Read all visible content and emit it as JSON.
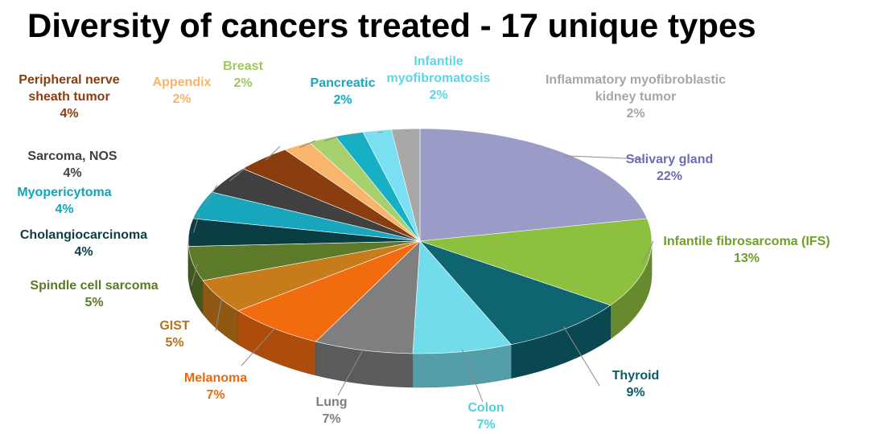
{
  "chart_data": {
    "type": "pie",
    "title": "Diversity of cancers treated - 17 unique types",
    "slices": [
      {
        "label": "Salivary gland",
        "value": 22,
        "value_label": "22%",
        "color": "#9B9BC7",
        "label_color": "#6C6CB3"
      },
      {
        "label": "Infantile fibrosarcoma (IFS)",
        "value": 13,
        "value_label": "13%",
        "color": "#8DC03F",
        "label_color": "#6E9F2A"
      },
      {
        "label": "Thyroid",
        "value": 9,
        "value_label": "9%",
        "color": "#0E6470",
        "label_color": "#0E5A66"
      },
      {
        "label": "Colon",
        "value": 7,
        "value_label": "7%",
        "color": "#73DCEB",
        "label_color": "#56CDE0"
      },
      {
        "label": "Lung",
        "value": 7,
        "value_label": "7%",
        "color": "#7F7F7F",
        "label_color": "#7F7F7F"
      },
      {
        "label": "Melanoma",
        "value": 7,
        "value_label": "7%",
        "color": "#F26B0F",
        "label_color": "#E86A10"
      },
      {
        "label": "GIST",
        "value": 5,
        "value_label": "5%",
        "color": "#C77B1A",
        "label_color": "#B8721A"
      },
      {
        "label": "Spindle cell sarcoma",
        "value": 5,
        "value_label": "5%",
        "color": "#5C7A28",
        "label_color": "#5A7A24"
      },
      {
        "label": "Cholangiocarcinoma",
        "value": 4,
        "value_label": "4%",
        "color": "#0B3D45",
        "label_color": "#0E3D44"
      },
      {
        "label": "Myopericytoma",
        "value": 4,
        "value_label": "4%",
        "color": "#18A6BD",
        "label_color": "#14A4BA"
      },
      {
        "label": "Sarcoma, NOS",
        "value": 4,
        "value_label": "4%",
        "color": "#404040",
        "label_color": "#404040"
      },
      {
        "label": "Peripheral nerve sheath tumor",
        "value": 4,
        "value_label": "4%",
        "color": "#8A3D0E",
        "label_color": "#8A3D0E"
      },
      {
        "label": "Appendix",
        "value": 2,
        "value_label": "2%",
        "color": "#F9B56B",
        "label_color": "#F7B46A"
      },
      {
        "label": "Breast",
        "value": 2,
        "value_label": "2%",
        "color": "#A7D06F",
        "label_color": "#9DC95F"
      },
      {
        "label": "Pancreatic",
        "value": 2,
        "value_label": "2%",
        "color": "#17AFC4",
        "label_color": "#17A7BF"
      },
      {
        "label": "Infantile myofibromatosis",
        "value": 2,
        "value_label": "2%",
        "color": "#7ADFF0",
        "label_color": "#5FD3E8"
      },
      {
        "label": "Inflammatory myofibroblastic kidney tumor",
        "value": 2,
        "value_label": "2%",
        "color": "#A8A8A8",
        "label_color": "#A6A6A6"
      }
    ]
  }
}
